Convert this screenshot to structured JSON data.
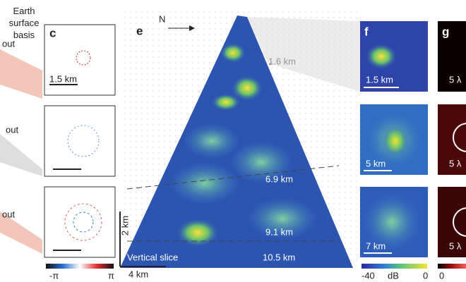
{
  "left_panel": {
    "label": "Earth surface basis",
    "fragments": [
      "out",
      "out",
      "out"
    ]
  },
  "panel_c": {
    "letter": "c",
    "scale_bar": "1.5 km",
    "colorbar": {
      "min": "-π",
      "max": "π"
    }
  },
  "panel_e": {
    "letter": "e",
    "north": "N",
    "depths": [
      "1.6 km",
      "6.9 km",
      "9.1 km",
      "10.5 km"
    ],
    "caption": "Vertical slice",
    "scale_vertical": "2 km",
    "scale_horizontal": "4 km"
  },
  "panel_f": {
    "letter": "f",
    "scale_bars": [
      "1.5 km",
      "5 km",
      "7 km"
    ],
    "colorbar": {
      "min": "-40",
      "unit": "dB",
      "max": "0"
    }
  },
  "panel_g": {
    "letter": "g",
    "scale_bars": [
      "5 λ",
      "5 λ",
      "5 λ"
    ],
    "colorbar_min": "0"
  }
}
